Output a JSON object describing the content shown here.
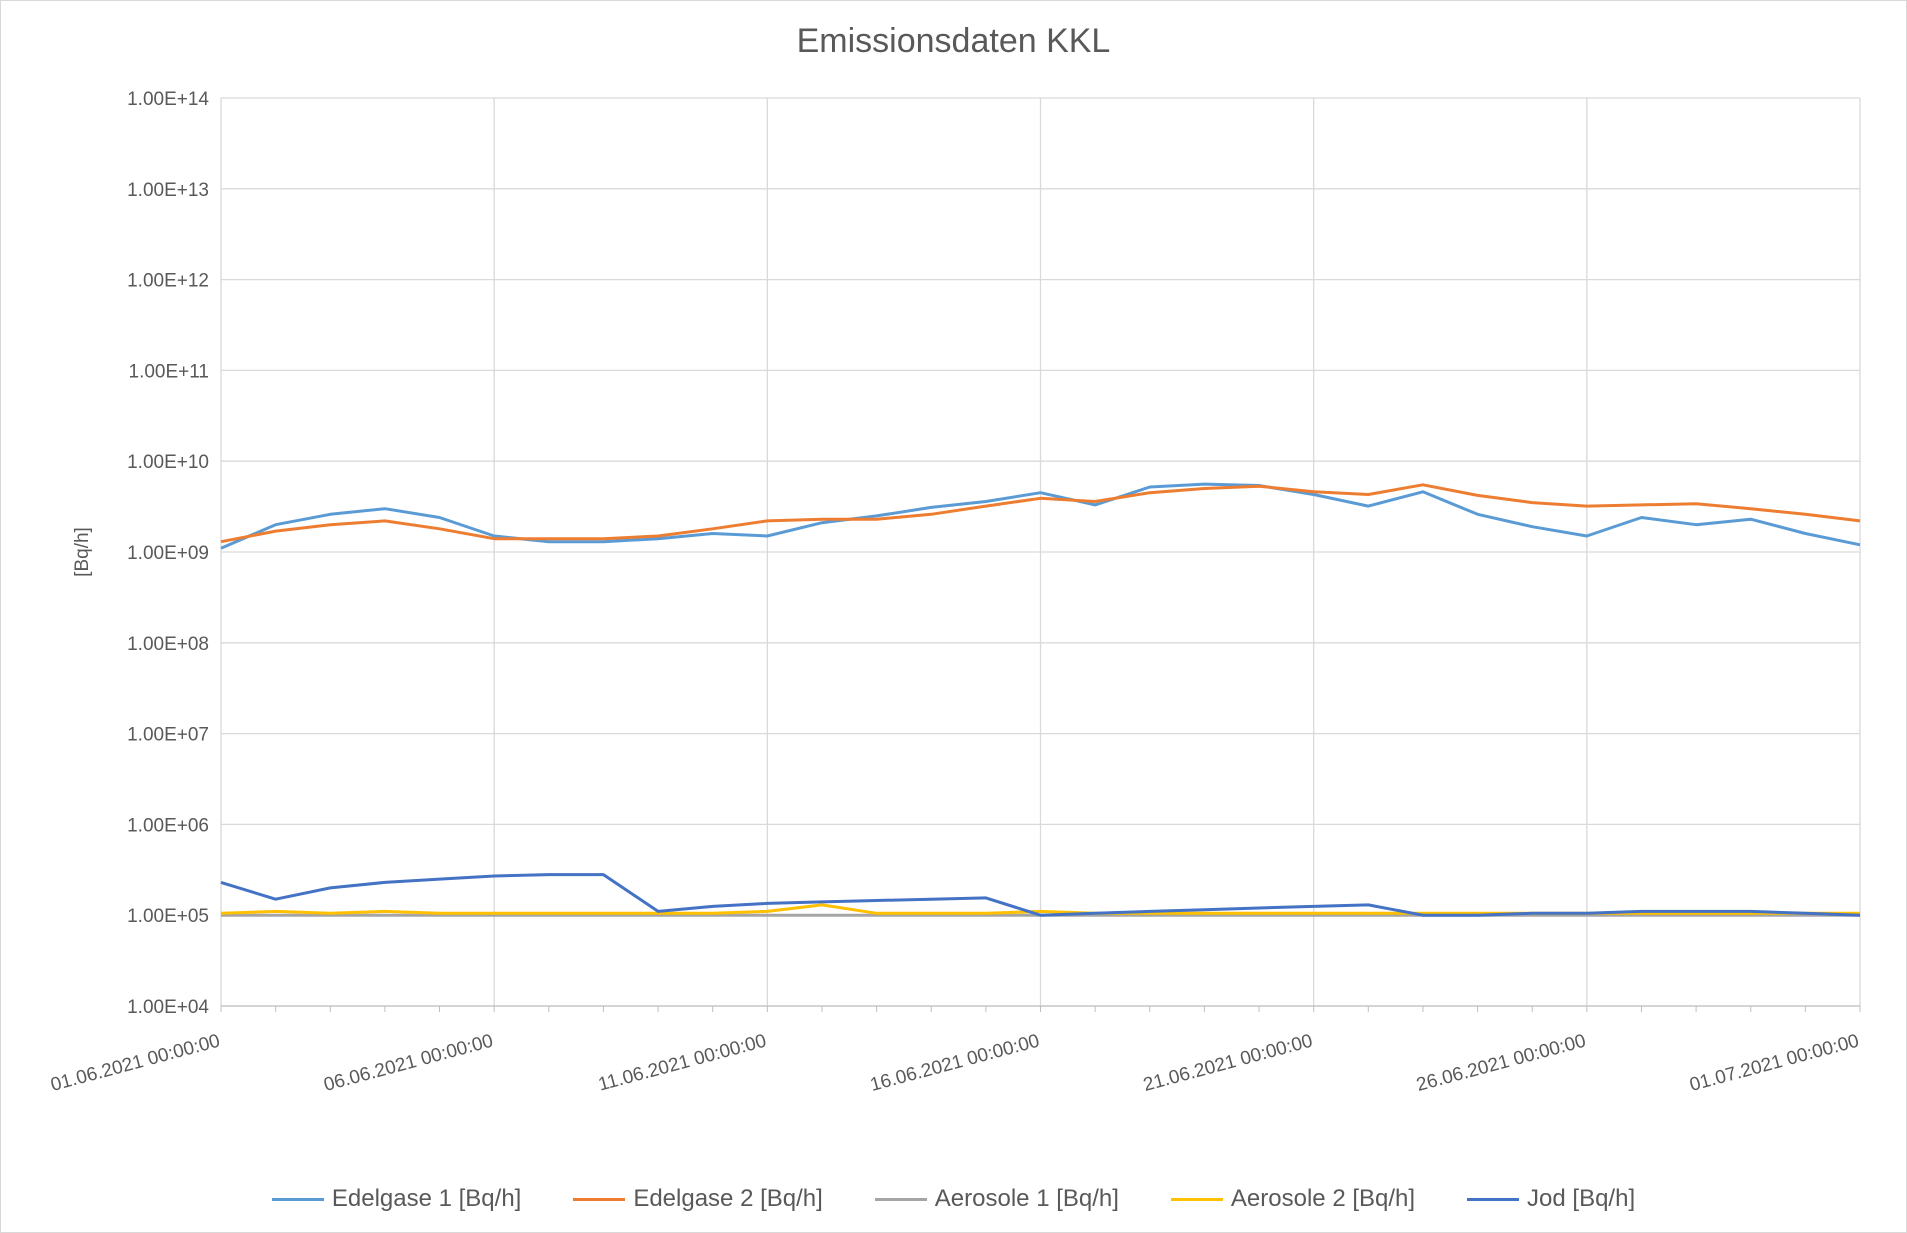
{
  "chart_data": {
    "type": "line",
    "title": "Emissionsdaten KKL",
    "ylabel": "[Bq/h]",
    "yscale": "log",
    "ylim": [
      10000,
      100000000000000
    ],
    "yticks": [
      "1.00E+04",
      "1.00E+05",
      "1.00E+06",
      "1.00E+07",
      "1.00E+08",
      "1.00E+09",
      "1.00E+10",
      "1.00E+11",
      "1.00E+12",
      "1.00E+13",
      "1.00E+14"
    ],
    "xlim": [
      "2021-06-01",
      "2021-07-01"
    ],
    "xticks": [
      "01.06.2021 00:00:00",
      "06.06.2021 00:00:00",
      "11.06.2021 00:00:00",
      "16.06.2021 00:00:00",
      "21.06.2021 00:00:00",
      "26.06.2021 00:00:00",
      "01.07.2021 00:00:00"
    ],
    "grid": true,
    "legend_position": "bottom",
    "x": [
      "2021-06-01",
      "2021-06-02",
      "2021-06-03",
      "2021-06-04",
      "2021-06-05",
      "2021-06-06",
      "2021-06-07",
      "2021-06-08",
      "2021-06-09",
      "2021-06-10",
      "2021-06-11",
      "2021-06-12",
      "2021-06-13",
      "2021-06-14",
      "2021-06-15",
      "2021-06-16",
      "2021-06-17",
      "2021-06-18",
      "2021-06-19",
      "2021-06-20",
      "2021-06-21",
      "2021-06-22",
      "2021-06-23",
      "2021-06-24",
      "2021-06-25",
      "2021-06-26",
      "2021-06-27",
      "2021-06-28",
      "2021-06-29",
      "2021-06-30",
      "2021-07-01"
    ],
    "series": [
      {
        "name": "Edelgase 1 [Bq/h]",
        "color": "#5b9bd5",
        "values": [
          1100000000.0,
          2000000000.0,
          2600000000.0,
          3000000000.0,
          2400000000.0,
          1500000000.0,
          1300000000.0,
          1300000000.0,
          1400000000.0,
          1600000000.0,
          1500000000.0,
          2100000000.0,
          2500000000.0,
          3100000000.0,
          3600000000.0,
          4500000000.0,
          3300000000.0,
          5200000000.0,
          5600000000.0,
          5400000000.0,
          4300000000.0,
          3200000000.0,
          4600000000.0,
          2600000000.0,
          1900000000.0,
          1500000000.0,
          2400000000.0,
          2000000000.0,
          2300000000.0,
          1600000000.0,
          1200000000.0
        ]
      },
      {
        "name": "Edelgase 2 [Bq/h]",
        "color": "#ed7d31",
        "values": [
          1300000000.0,
          1700000000.0,
          2000000000.0,
          2200000000.0,
          1800000000.0,
          1400000000.0,
          1400000000.0,
          1400000000.0,
          1500000000.0,
          1800000000.0,
          2200000000.0,
          2300000000.0,
          2300000000.0,
          2600000000.0,
          3200000000.0,
          3900000000.0,
          3600000000.0,
          4500000000.0,
          5000000000.0,
          5300000000.0,
          4600000000.0,
          4300000000.0,
          5500000000.0,
          4200000000.0,
          3500000000.0,
          3200000000.0,
          3300000000.0,
          3400000000.0,
          3000000000.0,
          2600000000.0,
          2200000000.0
        ]
      },
      {
        "name": "Aerosole 1 [Bq/h]",
        "color": "#a5a5a5",
        "values": [
          100000.0,
          100000.0,
          100000.0,
          100000.0,
          100000.0,
          100000.0,
          100000.0,
          100000.0,
          100000.0,
          100000.0,
          100000.0,
          100000.0,
          100000.0,
          100000.0,
          100000.0,
          100000.0,
          100000.0,
          100000.0,
          100000.0,
          100000.0,
          100000.0,
          100000.0,
          100000.0,
          100000.0,
          100000.0,
          100000.0,
          100000.0,
          100000.0,
          100000.0,
          100000.0,
          100000.0
        ]
      },
      {
        "name": "Aerosole 2 [Bq/h]",
        "color": "#ffc000",
        "values": [
          105000.0,
          110000.0,
          105000.0,
          110000.0,
          105000.0,
          105000.0,
          105000.0,
          105000.0,
          105000.0,
          105000.0,
          110000.0,
          130000.0,
          105000.0,
          105000.0,
          105000.0,
          110000.0,
          105000.0,
          105000.0,
          105000.0,
          105000.0,
          105000.0,
          105000.0,
          105000.0,
          105000.0,
          105000.0,
          105000.0,
          105000.0,
          105000.0,
          105000.0,
          105000.0,
          105000.0
        ]
      },
      {
        "name": "Jod [Bq/h]",
        "color": "#4472c4",
        "values": [
          230000.0,
          150000.0,
          200000.0,
          230000.0,
          250000.0,
          270000.0,
          280000.0,
          280000.0,
          110000.0,
          125000.0,
          135000.0,
          140000.0,
          145000.0,
          150000.0,
          155000.0,
          100000.0,
          105000.0,
          110000.0,
          115000.0,
          120000.0,
          125000.0,
          130000.0,
          100000.0,
          100000.0,
          105000.0,
          105000.0,
          110000.0,
          110000.0,
          110000.0,
          105000.0,
          100000.0
        ]
      }
    ]
  }
}
